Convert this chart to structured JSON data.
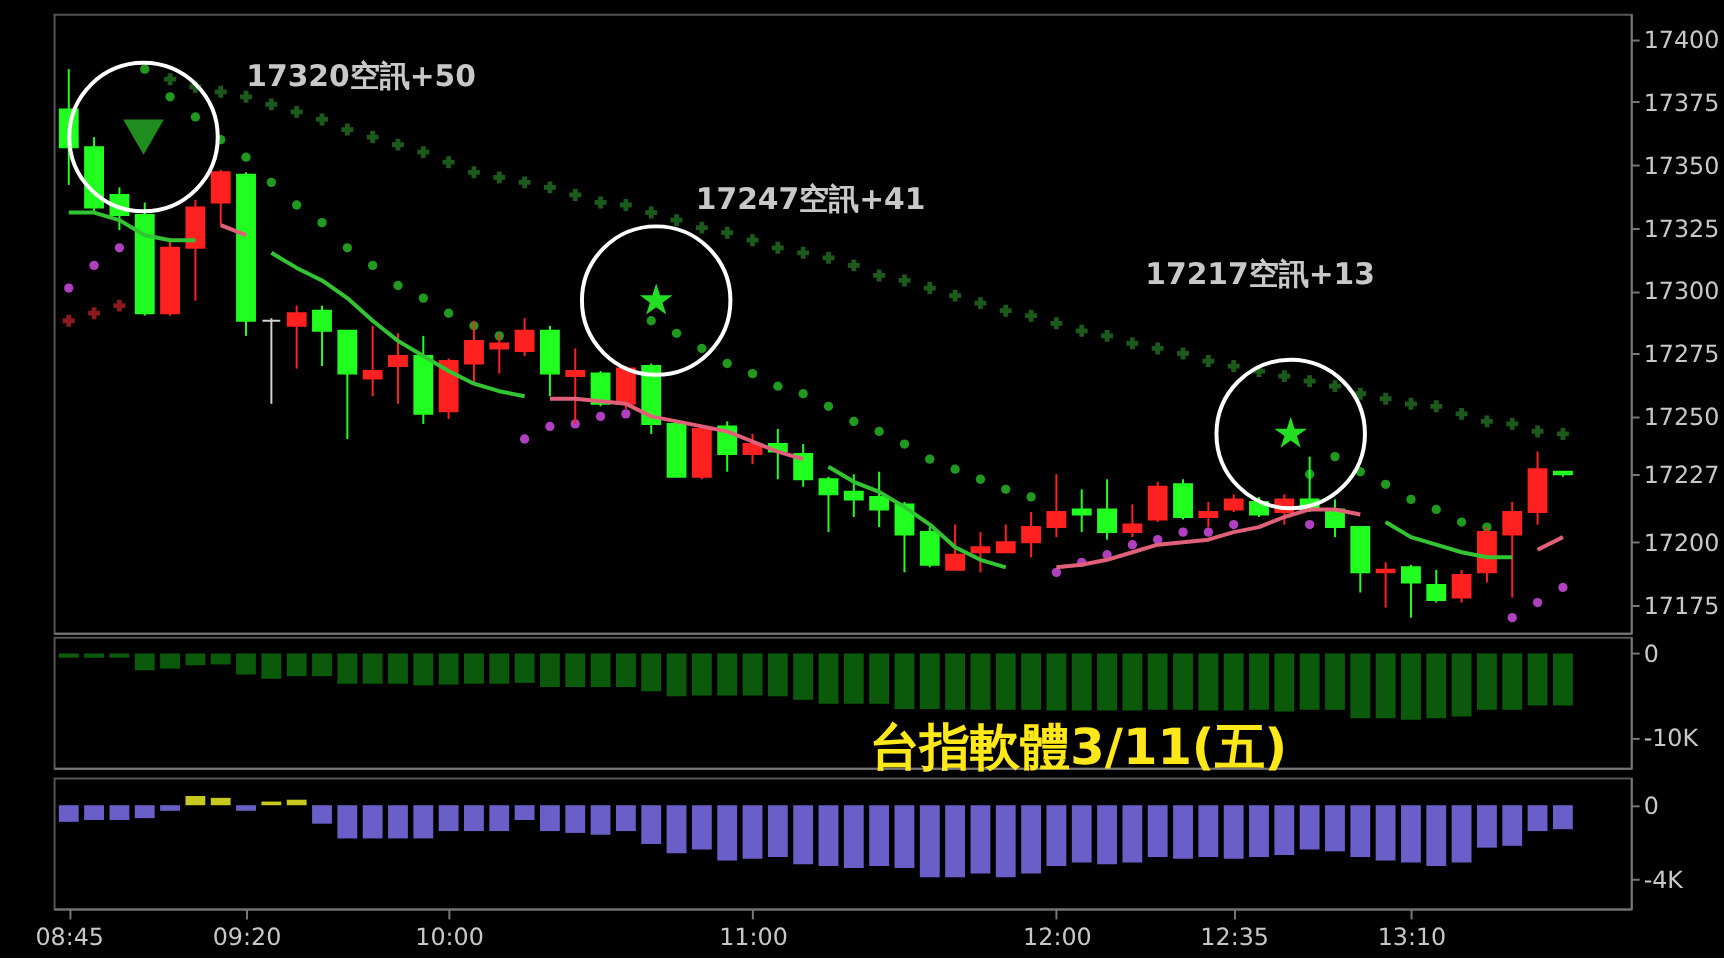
{
  "chart_data": [
    {
      "type": "candlestick",
      "x": [
        8.75,
        8.8333,
        8.9167,
        9,
        9.0833,
        9.1667,
        9.25,
        9.3333,
        9.4167,
        9.5,
        9.5833,
        9.6667,
        9.75,
        9.8333,
        9.9167,
        10,
        10.0833,
        10.1667,
        10.25,
        10.3333,
        10.4167,
        10.5,
        10.5833,
        10.6667,
        10.75,
        10.8333,
        10.9167,
        11,
        11.0833,
        11.1667,
        11.25,
        11.3333,
        11.4167,
        11.5,
        11.5833,
        11.6667,
        11.75,
        11.8333,
        11.9167,
        12,
        12.0833,
        12.1667,
        12.25,
        12.3333,
        12.4167,
        12.5,
        12.5833,
        12.6667,
        12.75,
        12.8333,
        12.9167,
        13,
        13.0833,
        13.1667,
        13.25,
        13.3333,
        13.4167,
        13.5,
        13.5833,
        13.6667
      ],
      "ohlc": [
        [
          17372,
          17388,
          17342,
          17357
        ],
        [
          17357,
          17361,
          17331,
          17333
        ],
        [
          17338,
          17341,
          17324,
          17330
        ],
        [
          17330,
          17335,
          17290,
          17291
        ],
        [
          17291,
          17321,
          17290,
          17317
        ],
        [
          17317,
          17336,
          17296,
          17333
        ],
        [
          17335,
          17348,
          17326,
          17347
        ],
        [
          17346,
          17347,
          17282,
          17288
        ],
        [
          17288,
          17289,
          17255,
          17288
        ],
        [
          17286,
          17294,
          17269,
          17291
        ],
        [
          17292,
          17294,
          17270,
          17284
        ],
        [
          17284,
          17284,
          17241,
          17267
        ],
        [
          17265,
          17286,
          17258,
          17268
        ],
        [
          17270,
          17283,
          17255,
          17274
        ],
        [
          17274,
          17282,
          17247,
          17251
        ],
        [
          17252,
          17273,
          17249,
          17272
        ],
        [
          17271,
          17288,
          17263,
          17280
        ],
        [
          17277,
          17283,
          17267,
          17279
        ],
        [
          17276,
          17289,
          17274,
          17284
        ],
        [
          17284,
          17286,
          17258,
          17267
        ],
        [
          17266,
          17277,
          17247,
          17268
        ],
        [
          17267,
          17268,
          17254,
          17255
        ],
        [
          17255,
          17270,
          17253,
          17269
        ],
        [
          17270,
          17271,
          17243,
          17247
        ],
        [
          17247,
          17248,
          17226,
          17226
        ],
        [
          17226,
          17246,
          17225,
          17245
        ],
        [
          17246,
          17248,
          17228,
          17235
        ],
        [
          17235,
          17243,
          17231,
          17239
        ],
        [
          17239,
          17245,
          17225,
          17236
        ],
        [
          17235,
          17239,
          17222,
          17225
        ],
        [
          17225,
          17226,
          17204,
          17219
        ],
        [
          17220,
          17227,
          17210,
          17217
        ],
        [
          17218,
          17228,
          17206,
          17213
        ],
        [
          17215,
          17216,
          17188,
          17203
        ],
        [
          17204,
          17206,
          17190,
          17191
        ],
        [
          17189,
          17207,
          17189,
          17195
        ],
        [
          17196,
          17204,
          17188,
          17198
        ],
        [
          17196,
          17207,
          17196,
          17200
        ],
        [
          17200,
          17212,
          17194,
          17206
        ],
        [
          17206,
          17227,
          17202,
          17212
        ],
        [
          17213,
          17221,
          17204,
          17211
        ],
        [
          17213,
          17225,
          17201,
          17204
        ],
        [
          17204,
          17215,
          17202,
          17207
        ],
        [
          17209,
          17224,
          17208,
          17222
        ],
        [
          17223,
          17225,
          17209,
          17210
        ],
        [
          17210,
          17216,
          17206,
          17212
        ],
        [
          17213,
          17219,
          17212,
          17217
        ],
        [
          17216,
          17218,
          17210,
          17211
        ],
        [
          17212,
          17219,
          17207,
          17217
        ],
        [
          17217,
          17234,
          17212,
          17213
        ],
        [
          17213,
          17217,
          17202,
          17206
        ],
        [
          17206,
          17206,
          17180,
          17188
        ],
        [
          17188,
          17192,
          17174,
          17189
        ],
        [
          17190,
          17191,
          17170,
          17184
        ],
        [
          17183,
          17189,
          17176,
          17177
        ],
        [
          17178,
          17189,
          17176,
          17187
        ],
        [
          17188,
          17206,
          17184,
          17204
        ],
        [
          17203,
          17216,
          17178,
          17212
        ],
        [
          17212,
          17236,
          17207,
          17229
        ],
        [
          17228,
          17228,
          17226,
          17227
        ]
      ],
      "colors": [
        "#20ff20",
        "#20ff20",
        "#20ff20",
        "#20ff20",
        "#ff2020",
        "#ff2020",
        "#ff2020",
        "#20ff20",
        "#d0d0d0",
        "#ff2020",
        "#20ff20",
        "#20ff20",
        "#ff2020",
        "#ff2020",
        "#20ff20",
        "#ff2020",
        "#ff2020",
        "#ff2020",
        "#ff2020",
        "#20ff20",
        "#ff2020",
        "#20ff20",
        "#ff2020",
        "#20ff20",
        "#20ff20",
        "#ff2020",
        "#20ff20",
        "#ff2020",
        "#20ff20",
        "#20ff20",
        "#20ff20",
        "#20ff20",
        "#20ff20",
        "#20ff20",
        "#20ff20",
        "#ff2020",
        "#ff2020",
        "#ff2020",
        "#ff2020",
        "#ff2020",
        "#20ff20",
        "#20ff20",
        "#ff2020",
        "#ff2020",
        "#20ff20",
        "#ff2020",
        "#ff2020",
        "#20ff20",
        "#ff2020",
        "#20ff20",
        "#20ff20",
        "#20ff20",
        "#ff2020",
        "#20ff20",
        "#20ff20",
        "#ff2020",
        "#ff2020",
        "#ff2020",
        "#ff2020",
        "#20ff20"
      ],
      "series": [
        {
          "type": "scatter",
          "marker": "cross",
          "color": "#1c5a1c",
          "values": [
            null,
            null,
            null,
            null,
            17384,
            17381,
            17379,
            17377,
            17374,
            17371,
            17368,
            17364,
            17361,
            17358,
            17355,
            17351,
            17347,
            17345,
            17343,
            17341,
            17338,
            17335,
            17334,
            17331,
            17328,
            17325,
            17323,
            17320,
            17317,
            17315,
            17313,
            17310,
            17306,
            17304,
            17301,
            17298,
            17295,
            17292,
            17290,
            17287,
            17284,
            17282,
            17279,
            17277,
            17275,
            17272,
            17270,
            17268,
            17266,
            17264,
            17262,
            17259,
            17257,
            17255,
            17254,
            17251,
            17248,
            17247,
            17244,
            17243
          ]
        },
        {
          "type": "scatter",
          "marker": "circle",
          "color": "#1f9a1f",
          "values": [
            null,
            null,
            null,
            17388,
            17377,
            17369,
            17360,
            17353,
            17343,
            17334,
            17327,
            17317,
            17310,
            17302,
            17297,
            17291,
            17286,
            17282,
            null,
            null,
            null,
            null,
            null,
            17288,
            17283,
            17277,
            17271,
            17267,
            17262,
            17259,
            17254,
            17248,
            17244,
            17239,
            17233,
            17229,
            17225,
            17221,
            17218,
            null,
            null,
            null,
            null,
            null,
            null,
            null,
            null,
            null,
            null,
            17227,
            17234,
            17228,
            17223,
            17217,
            17213,
            17208,
            17206,
            null,
            null,
            null
          ]
        },
        {
          "type": "line",
          "color": "#33c433",
          "values": [
            17331,
            17331,
            17328,
            17322,
            17320,
            17320,
            null,
            null,
            17315,
            17309,
            17304,
            17297,
            17288,
            17280,
            17274,
            17268,
            17263,
            17260,
            17258,
            null,
            null,
            null,
            null,
            null,
            null,
            null,
            null,
            null,
            null,
            null,
            17230,
            17224,
            17220,
            17214,
            17207,
            17198,
            17193,
            17190,
            null,
            null,
            null,
            null,
            null,
            null,
            null,
            null,
            null,
            null,
            null,
            null,
            null,
            null,
            17208,
            17202,
            17199,
            17196,
            17194,
            17194,
            null,
            null
          ]
        },
        {
          "type": "line",
          "color": "#e0607a",
          "values": [
            null,
            null,
            null,
            null,
            null,
            null,
            17326,
            17322,
            null,
            null,
            null,
            null,
            null,
            null,
            null,
            null,
            null,
            null,
            null,
            17257,
            17257,
            17256,
            17255,
            17250,
            17248,
            17246,
            17244,
            17240,
            17236,
            17233,
            null,
            null,
            null,
            null,
            null,
            null,
            null,
            null,
            null,
            17190,
            17191,
            17193,
            17196,
            17199,
            17200,
            17201,
            17204,
            17206,
            17210,
            17213,
            17213,
            17211,
            null,
            null,
            null,
            null,
            null,
            null,
            17197,
            17202
          ]
        },
        {
          "type": "scatter",
          "marker": "circle",
          "color": "#b040c0",
          "values": [
            17301,
            17310,
            17317,
            null,
            null,
            null,
            null,
            null,
            null,
            null,
            null,
            null,
            null,
            null,
            null,
            null,
            null,
            null,
            17241,
            17246,
            17247,
            17250,
            17251,
            null,
            null,
            null,
            null,
            null,
            null,
            null,
            null,
            null,
            null,
            null,
            null,
            null,
            null,
            null,
            null,
            17188,
            17192,
            17195,
            17199,
            17201,
            17204,
            17204,
            17207,
            null,
            null,
            17207,
            null,
            null,
            null,
            null,
            null,
            null,
            null,
            17170,
            17176,
            17182
          ]
        },
        {
          "type": "scatter",
          "marker": "cross",
          "color": "#8b1a1a",
          "x": [
            8.75,
            8.8333,
            8.9167
          ],
          "values": [
            17288,
            17291,
            17294
          ]
        },
        {
          "type": "scatter",
          "marker": "triangle",
          "color": "#1e8c1e",
          "x": [
            8.996
          ],
          "values": [
            17361
          ]
        },
        {
          "type": "scatter",
          "marker": "star",
          "color": "#22dd22",
          "x": [
            10.683,
            12.771
          ],
          "values": [
            17296,
            17243
          ]
        }
      ],
      "annotations": [
        "17320空訊+50",
        "17247空訊+41",
        "17217空訊+13"
      ],
      "xlim": [
        8.7,
        13.89
      ],
      "ylim": [
        17164,
        17410
      ],
      "yticks": [
        17175,
        17200,
        17227,
        17250,
        17275,
        17300,
        17325,
        17350,
        17375,
        17400
      ],
      "tick_labels": "y",
      "grid": false
    },
    {
      "type": "bar",
      "x": [
        8.75,
        8.8333,
        8.9167,
        9,
        9.0833,
        9.1667,
        9.25,
        9.3333,
        9.4167,
        9.5,
        9.5833,
        9.6667,
        9.75,
        9.8333,
        9.9167,
        10,
        10.0833,
        10.1667,
        10.25,
        10.3333,
        10.4167,
        10.5,
        10.5833,
        10.6667,
        10.75,
        10.8333,
        10.9167,
        11,
        11.0833,
        11.1667,
        11.25,
        11.3333,
        11.4167,
        11.5,
        11.5833,
        11.6667,
        11.75,
        11.8333,
        11.9167,
        12,
        12.0833,
        12.1667,
        12.25,
        12.3333,
        12.4167,
        12.5,
        12.5833,
        12.6667,
        12.75,
        12.8333,
        12.9167,
        13,
        13.0833,
        13.1667,
        13.25,
        13.3333,
        13.4167,
        13.5,
        13.5833,
        13.6667
      ],
      "series": [
        {
          "color": "#0b5a0b",
          "values": [
            -500,
            -500,
            -500,
            -2000,
            -1800,
            -1400,
            -1300,
            -2500,
            -3000,
            -2700,
            -2700,
            -3600,
            -3600,
            -3600,
            -3800,
            -3700,
            -3600,
            -3600,
            -3500,
            -4000,
            -4000,
            -4000,
            -4000,
            -4500,
            -5100,
            -5000,
            -5000,
            -5000,
            -5100,
            -5500,
            -6000,
            -6000,
            -6000,
            -6600,
            -6600,
            -6700,
            -6700,
            -6700,
            -6700,
            -6800,
            -6800,
            -6800,
            -6800,
            -6700,
            -6700,
            -6800,
            -6800,
            -6700,
            -6900,
            -6700,
            -6700,
            -7700,
            -7700,
            -7900,
            -7700,
            -7500,
            -6700,
            -6700,
            -6200,
            -6200
          ]
        }
      ],
      "annotations": [
        "台指軟體3/11(五)"
      ],
      "xlim": [
        8.7,
        13.89
      ],
      "ylim": [
        -13600,
        2000
      ],
      "yticks": [
        0,
        {
          "value": -10000,
          "label": "-10K"
        }
      ],
      "tick_labels": "y",
      "grid": false
    },
    {
      "type": "bar",
      "x": [
        8.75,
        8.8333,
        8.9167,
        9,
        9.0833,
        9.1667,
        9.25,
        9.3333,
        9.4167,
        9.5,
        9.5833,
        9.6667,
        9.75,
        9.8333,
        9.9167,
        10,
        10.0833,
        10.1667,
        10.25,
        10.3333,
        10.4167,
        10.5,
        10.5833,
        10.6667,
        10.75,
        10.8333,
        10.9167,
        11,
        11.0833,
        11.1667,
        11.25,
        11.3333,
        11.4167,
        11.5,
        11.5833,
        11.6667,
        11.75,
        11.8333,
        11.9167,
        12,
        12.0833,
        12.1667,
        12.25,
        12.3333,
        12.4167,
        12.5,
        12.5833,
        12.6667,
        12.75,
        12.8333,
        12.9167,
        13,
        13.0833,
        13.1667,
        13.25,
        13.3333,
        13.4167,
        13.5,
        13.5833,
        13.6667
      ],
      "values": [
        -900,
        -800,
        -800,
        -700,
        -300,
        500,
        400,
        -300,
        200,
        300,
        -1000,
        -1800,
        -1800,
        -1800,
        -1800,
        -1400,
        -1400,
        -1400,
        -800,
        -1400,
        -1500,
        -1600,
        -1400,
        -2100,
        -2600,
        -2400,
        -3000,
        -2900,
        -2800,
        -3200,
        -3300,
        -3400,
        -3300,
        -3400,
        -3900,
        -3900,
        -3700,
        -3900,
        -3700,
        -3300,
        -3100,
        -3200,
        -3100,
        -2800,
        -2900,
        -2800,
        -2900,
        -2800,
        -2700,
        -2400,
        -2500,
        -2800,
        -3000,
        -3100,
        -3300,
        -3100,
        -2300,
        -2200,
        -1400,
        -1300
      ],
      "colors": [
        "#6a5fc8",
        "#6a5fc8",
        "#6a5fc8",
        "#6a5fc8",
        "#6a5fc8",
        "#c8c81e",
        "#c8c81e",
        "#6a5fc8",
        "#c8c81e",
        "#c8c81e",
        "#6a5fc8",
        "#6a5fc8",
        "#6a5fc8",
        "#6a5fc8",
        "#6a5fc8",
        "#6a5fc8",
        "#6a5fc8",
        "#6a5fc8",
        "#6a5fc8",
        "#6a5fc8",
        "#6a5fc8",
        "#6a5fc8",
        "#6a5fc8",
        "#6a5fc8",
        "#6a5fc8",
        "#6a5fc8",
        "#6a5fc8",
        "#6a5fc8",
        "#6a5fc8",
        "#6a5fc8",
        "#6a5fc8",
        "#6a5fc8",
        "#6a5fc8",
        "#6a5fc8",
        "#6a5fc8",
        "#6a5fc8",
        "#6a5fc8",
        "#6a5fc8",
        "#6a5fc8",
        "#6a5fc8",
        "#6a5fc8",
        "#6a5fc8",
        "#6a5fc8",
        "#6a5fc8",
        "#6a5fc8",
        "#6a5fc8",
        "#6a5fc8",
        "#6a5fc8",
        "#6a5fc8",
        "#6a5fc8",
        "#6a5fc8",
        "#6a5fc8",
        "#6a5fc8",
        "#6a5fc8",
        "#6a5fc8",
        "#6a5fc8",
        "#6a5fc8",
        "#6a5fc8",
        "#6a5fc8",
        "#6a5fc8"
      ],
      "xlim": [
        8.7,
        13.89
      ],
      "xticks": [
        {
          "value": 8.75,
          "label": "08:45"
        },
        {
          "value": 9.3333,
          "label": "09:20"
        },
        {
          "value": 10,
          "label": "10:00"
        },
        {
          "value": 11,
          "label": "11:00"
        },
        {
          "value": 12,
          "label": "12:00"
        },
        {
          "value": 12.5833,
          "label": "12:35"
        },
        {
          "value": 13.1667,
          "label": "13:10"
        }
      ],
      "ylim": [
        -5600,
        1500
      ],
      "yticks": [
        0,
        {
          "value": -4000,
          "label": "-4K"
        }
      ],
      "grid": false
    }
  ]
}
